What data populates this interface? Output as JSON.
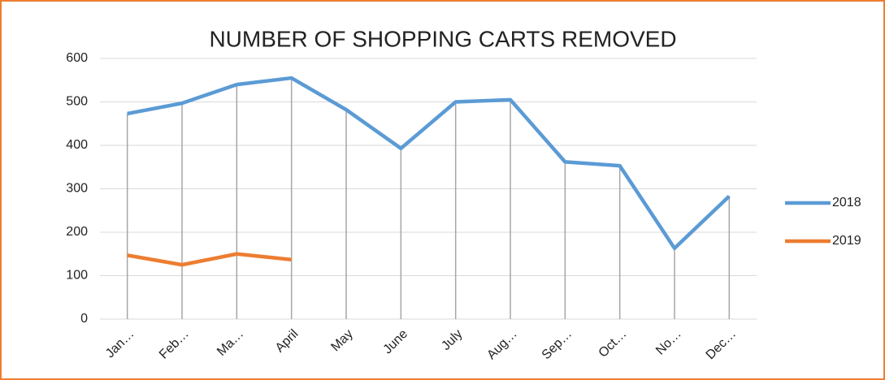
{
  "chart_data": {
    "type": "line",
    "title": "NUMBER OF SHOPPING CARTS REMOVED",
    "categories": [
      "Jan…",
      "Feb…",
      "Ma…",
      "April",
      "May",
      "June",
      "July",
      "Aug…",
      "Sep…",
      "Oct…",
      "No…",
      "Dec…"
    ],
    "series": [
      {
        "name": "2018",
        "color": "#5b9bd5",
        "values": [
          473,
          497,
          540,
          555,
          482,
          393,
          500,
          505,
          362,
          353,
          163,
          283
        ]
      },
      {
        "name": "2019",
        "color": "#ed7d31",
        "values": [
          147,
          125,
          150,
          137,
          null,
          null,
          null,
          null,
          null,
          null,
          null,
          null
        ]
      }
    ],
    "ylim": [
      0,
      600
    ],
    "yticks": [
      0,
      100,
      200,
      300,
      400,
      500,
      600
    ],
    "grid": true,
    "drop_lines": true,
    "legend": "right"
  }
}
